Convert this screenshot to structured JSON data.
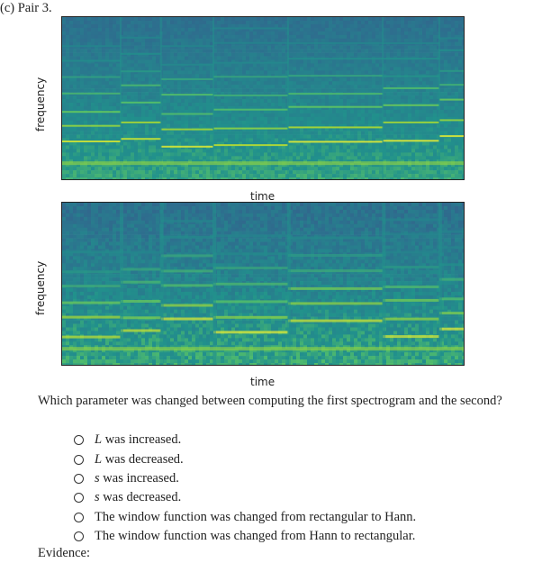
{
  "caption": "(c) Pair 3.",
  "spectrograms": [
    {
      "ylabel": "frequency",
      "xlabel": "time",
      "onset_times": [
        0.145,
        0.245,
        0.375,
        0.56,
        0.795,
        0.935
      ]
    },
    {
      "ylabel": "frequency",
      "xlabel": "time",
      "onset_times": [
        0.145,
        0.245,
        0.375,
        0.56,
        0.795,
        0.935
      ]
    }
  ],
  "question": "Which parameter was changed between computing the first spectrogram and the second?",
  "options": [
    {
      "var": "L",
      "text": " was increased."
    },
    {
      "var": "L",
      "text": " was decreased."
    },
    {
      "var": "s",
      "text": " was increased."
    },
    {
      "var": "s",
      "text": " was decreased."
    },
    {
      "var": "",
      "text": "The window function was changed from rectangular to Hann."
    },
    {
      "var": "",
      "text": "The window function was changed from Hann to rectangular."
    }
  ],
  "evidence_label": "Evidence:",
  "colors": {
    "spec_dark": "#2f4f86",
    "spec_mid": "#2a9b84",
    "spec_bright": "#d6e92a"
  }
}
